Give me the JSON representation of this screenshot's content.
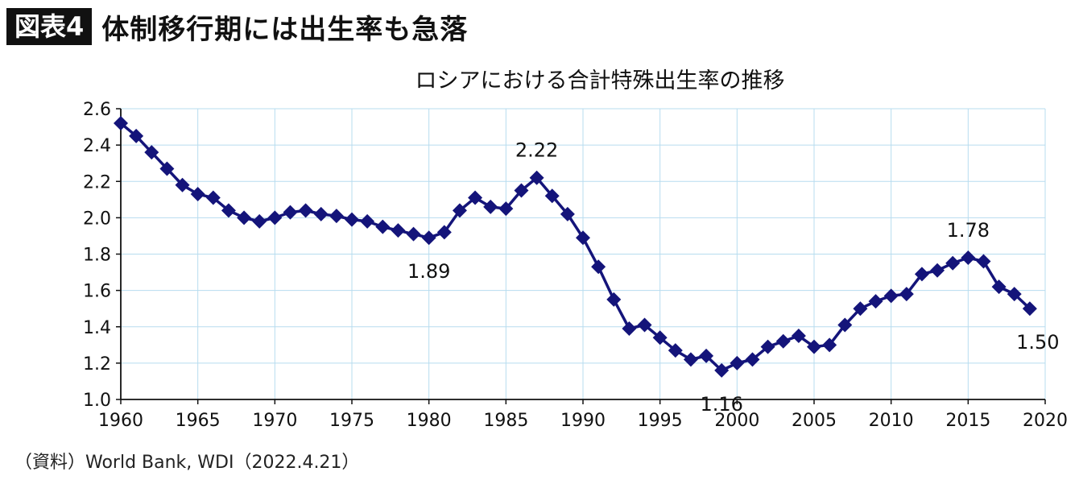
{
  "header": {
    "badge": "図表4",
    "title": "体制移行期には出生率も急落"
  },
  "source": "（資料）World Bank, WDI（2022.4.21）",
  "colors": {
    "series": "#14147a",
    "grid": "#b7dcef",
    "axis": "#111111"
  },
  "chart_data": {
    "type": "line",
    "title": "ロシアにおける合計特殊出生率の推移",
    "xlabel": "",
    "ylabel": "",
    "xlim": [
      1960,
      2020
    ],
    "ylim": [
      1.0,
      2.6
    ],
    "x_ticks": [
      "1960",
      "1965",
      "1970",
      "1975",
      "1980",
      "1985",
      "1990",
      "1995",
      "2000",
      "2005",
      "2010",
      "2015",
      "2020"
    ],
    "y_ticks": [
      "1.0",
      "1.2",
      "1.4",
      "1.6",
      "1.8",
      "2.0",
      "2.2",
      "2.4",
      "2.6"
    ],
    "grid": true,
    "marker": "diamond",
    "series": [
      {
        "x": [
          1960,
          1961,
          1962,
          1963,
          1964,
          1965,
          1966,
          1967,
          1968,
          1969,
          1970,
          1971,
          1972,
          1973,
          1974,
          1975,
          1976,
          1977,
          1978,
          1979,
          1980,
          1981,
          1982,
          1983,
          1984,
          1985,
          1986,
          1987,
          1988,
          1989,
          1990,
          1991,
          1992,
          1993,
          1994,
          1995,
          1996,
          1997,
          1998,
          1999,
          2000,
          2001,
          2002,
          2003,
          2004,
          2005,
          2006,
          2007,
          2008,
          2009,
          2010,
          2011,
          2012,
          2013,
          2014,
          2015,
          2016,
          2017,
          2018,
          2019
        ],
        "values": [
          2.52,
          2.45,
          2.36,
          2.27,
          2.18,
          2.13,
          2.11,
          2.04,
          2.0,
          1.98,
          2.0,
          2.03,
          2.04,
          2.02,
          2.01,
          1.99,
          1.98,
          1.95,
          1.93,
          1.91,
          1.89,
          1.92,
          2.04,
          2.11,
          2.06,
          2.05,
          2.15,
          2.22,
          2.12,
          2.02,
          1.89,
          1.73,
          1.55,
          1.39,
          1.41,
          1.34,
          1.27,
          1.22,
          1.24,
          1.16,
          1.2,
          1.22,
          1.29,
          1.32,
          1.35,
          1.29,
          1.3,
          1.41,
          1.5,
          1.54,
          1.57,
          1.58,
          1.69,
          1.71,
          1.75,
          1.78,
          1.76,
          1.62,
          1.58,
          1.5
        ]
      }
    ],
    "annotations": [
      {
        "x": 1980,
        "y": 1.89,
        "text": "1.89",
        "position": "below"
      },
      {
        "x": 1987,
        "y": 2.22,
        "text": "2.22",
        "position": "above"
      },
      {
        "x": 1999,
        "y": 1.16,
        "text": "1.16",
        "position": "below"
      },
      {
        "x": 2015,
        "y": 1.78,
        "text": "1.78",
        "position": "above"
      },
      {
        "x": 2019,
        "y": 1.5,
        "text": "1.50",
        "position": "below"
      }
    ]
  }
}
